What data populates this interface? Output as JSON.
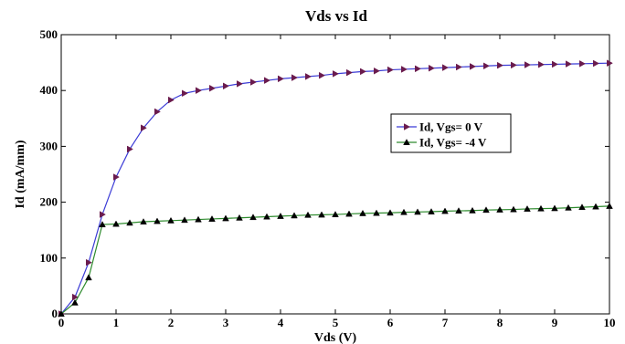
{
  "chart_data": {
    "type": "line",
    "title": "Vds vs Id",
    "xlabel": "Vds (V)",
    "ylabel": "Id (mA/mm)",
    "xlim": [
      0,
      10
    ],
    "ylim": [
      0,
      500
    ],
    "xticks": [
      0,
      1,
      2,
      3,
      4,
      5,
      6,
      7,
      8,
      9,
      10
    ],
    "yticks": [
      0,
      100,
      200,
      300,
      400,
      500
    ],
    "grid": false,
    "legend_position": "center-right",
    "x": [
      0,
      0.25,
      0.5,
      0.75,
      1.0,
      1.25,
      1.5,
      1.75,
      2.0,
      2.25,
      2.5,
      2.75,
      3.0,
      3.25,
      3.5,
      3.75,
      4.0,
      4.25,
      4.5,
      4.75,
      5.0,
      5.25,
      5.5,
      5.75,
      6.0,
      6.25,
      6.5,
      6.75,
      7.0,
      7.25,
      7.5,
      7.75,
      8.0,
      8.25,
      8.5,
      8.75,
      9.0,
      9.25,
      9.5,
      9.75,
      10.0
    ],
    "series": [
      {
        "name": "Id, Vgs= 0 V",
        "color": "#6a1b4d",
        "line_color": "#3b3bd6",
        "marker": "triangle-right",
        "values": [
          0,
          30,
          92,
          178,
          245,
          295,
          333,
          362,
          383,
          395,
          400,
          404,
          408,
          412,
          415,
          418,
          421,
          423,
          425,
          427,
          430,
          432,
          434,
          435,
          437,
          438,
          439,
          440,
          441,
          442,
          443,
          444,
          445,
          445.5,
          446,
          446.5,
          447,
          447.5,
          448,
          448.5,
          449
        ]
      },
      {
        "name": "Id, Vgs= -4 V",
        "color": "#000000",
        "line_color": "#2e8b2e",
        "marker": "triangle-up",
        "values": [
          0,
          20,
          65,
          160,
          161,
          163,
          165,
          166,
          167,
          168,
          169,
          170,
          171,
          172,
          173,
          174,
          175,
          176,
          177,
          177.5,
          178,
          179,
          180,
          180.5,
          181,
          182,
          182.5,
          183,
          184,
          184.5,
          185,
          186,
          186.5,
          187,
          188,
          188.5,
          189,
          190,
          191,
          192,
          193
        ]
      }
    ]
  }
}
